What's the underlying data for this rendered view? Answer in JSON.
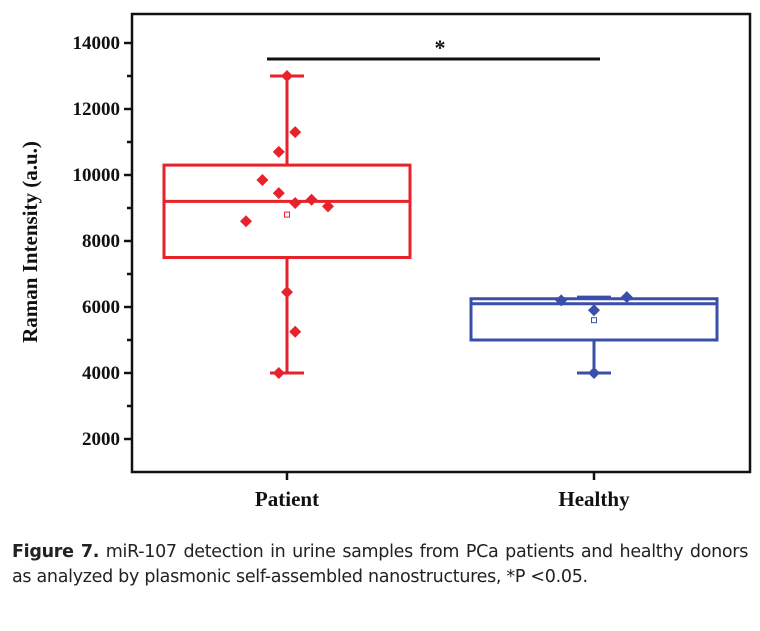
{
  "chart_data": {
    "type": "box",
    "title": "",
    "xlabel": "",
    "ylabel": "Raman Intensity (a.u.)",
    "ylim": [
      1000,
      15000
    ],
    "yticks": [
      2000,
      4000,
      6000,
      8000,
      10000,
      12000,
      14000
    ],
    "ytick_labels": [
      "2000",
      "4000",
      "6000",
      "8000",
      "10000",
      "12000",
      "14000"
    ],
    "categories": [
      "Patient",
      "Healthy"
    ],
    "series": [
      {
        "name": "Patient",
        "color": "#e8222a",
        "whisker_low": 4000,
        "q1": 7500,
        "median": 9200,
        "q3": 10300,
        "whisker_high": 13000,
        "mean": 8800,
        "points": [
          {
            "offset": 0,
            "value": 13000
          },
          {
            "offset": -0.2,
            "value": 10700
          },
          {
            "offset": 0.2,
            "value": 11300
          },
          {
            "offset": -0.6,
            "value": 9850
          },
          {
            "offset": -0.2,
            "value": 9450
          },
          {
            "offset": 0.2,
            "value": 9150
          },
          {
            "offset": 0.6,
            "value": 9250
          },
          {
            "offset": 1.0,
            "value": 9050
          },
          {
            "offset": -1.0,
            "value": 8600
          },
          {
            "offset": 0,
            "value": 6450
          },
          {
            "offset": 0.2,
            "value": 5250
          },
          {
            "offset": -0.2,
            "value": 4000
          }
        ]
      },
      {
        "name": "Healthy",
        "color": "#3a4fa8",
        "whisker_low": 4000,
        "q1": 5000,
        "median": 6100,
        "q3": 6250,
        "whisker_high": 6300,
        "mean": 5600,
        "points": [
          {
            "offset": -0.8,
            "value": 6200
          },
          {
            "offset": 0,
            "value": 5900
          },
          {
            "offset": 0.8,
            "value": 6300
          },
          {
            "offset": 0,
            "value": 4000
          }
        ]
      }
    ],
    "annotations": [
      {
        "type": "significance",
        "between": [
          "Patient",
          "Healthy"
        ],
        "label": "*"
      }
    ]
  },
  "caption": {
    "label": "Figure 7.",
    "text": " miR-107 detection in urine samples from PCa patients and healthy donors as analyzed by plasmonic self-assembled nanostructures, *P <0.05."
  }
}
